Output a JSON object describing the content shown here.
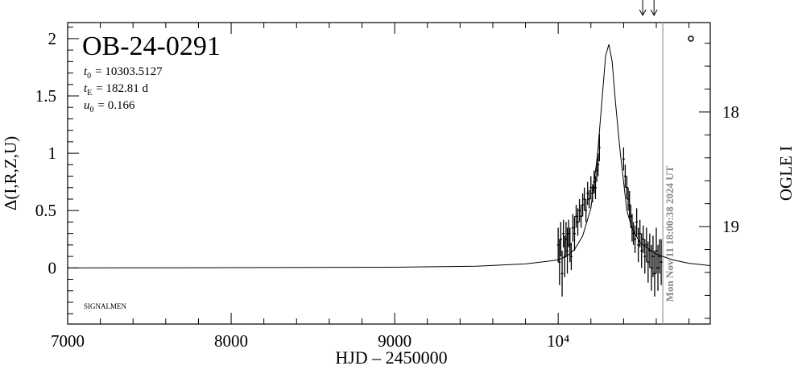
{
  "chart_data": {
    "type": "scatter",
    "title": "OB-24-0291",
    "parameters": [
      {
        "symbol": "t",
        "sub": "0",
        "text": "= 10303.5127"
      },
      {
        "symbol": "t",
        "sub": "E",
        "text": "= 182.81 d"
      },
      {
        "symbol": "u",
        "sub": "0",
        "text": "= 0.166"
      }
    ],
    "note": "SIGNALMEN",
    "timestamp": "Mon Nov 11 18:00:38 2024 UT",
    "x_label": "HJD – 2450000",
    "y_label": "Δ(I,R,Z,U)",
    "y2_label": "OGLE I",
    "xlim": [
      7000,
      10930
    ],
    "ylim": [
      -0.49,
      2.14
    ],
    "y2lim": [
      19.85,
      17.22
    ],
    "xticks": [
      7000,
      8000,
      9000,
      {
        "value": 10000,
        "label": "10⁴"
      }
    ],
    "xminorticks": [
      7200,
      7400,
      7600,
      7800,
      8200,
      8400,
      8600,
      8800,
      9200,
      9400,
      9600,
      9800,
      10200,
      10400,
      10600,
      10800
    ],
    "yticks": [
      0,
      0.5,
      1,
      1.5,
      2
    ],
    "yminorticks": [
      -0.4,
      -0.3,
      -0.2,
      -0.1,
      0.1,
      0.2,
      0.3,
      0.4,
      0.6,
      0.7,
      0.8,
      0.9,
      1.1,
      1.2,
      1.3,
      1.4,
      1.6,
      1.7,
      1.8,
      1.9,
      2.1
    ],
    "y2ticks": [
      18,
      19
    ],
    "y2minorticks": [
      17.4,
      17.6,
      17.8,
      18.2,
      18.4,
      18.6,
      18.8,
      19.2,
      19.4,
      19.6,
      19.8
    ],
    "now_line": 10640,
    "arrows": [
      10517,
      10586
    ],
    "series": [
      {
        "style": "line",
        "color": "#000000",
        "x": [
          7000,
          8000,
          9000,
          9500,
          9800,
          9950,
          10000,
          10050,
          10100,
          10150,
          10200,
          10240,
          10270,
          10290,
          10310,
          10330,
          10350,
          10380,
          10420,
          10450,
          10500,
          10600,
          10700,
          10800,
          10930
        ],
        "values": [
          0,
          0.002,
          0.006,
          0.015,
          0.035,
          0.06,
          0.07,
          0.1,
          0.16,
          0.28,
          0.52,
          0.98,
          1.5,
          1.85,
          1.95,
          1.8,
          1.45,
          1.0,
          0.5,
          0.35,
          0.22,
          0.12,
          0.07,
          0.04,
          0.02
        ]
      },
      {
        "style": "errorbar",
        "color": "#000000",
        "x": [
          10000,
          10008,
          10016,
          10024,
          10032,
          10040,
          10048,
          10056,
          10064,
          10072,
          10080,
          10090,
          10100,
          10110,
          10120,
          10130,
          10140,
          10150,
          10160,
          10170,
          10180,
          10190,
          10200,
          10210,
          10220,
          10228,
          10236,
          10244,
          10252,
          10400,
          10410,
          10420,
          10428,
          10436,
          10444,
          10452,
          10460,
          10470,
          10480,
          10490,
          10500,
          10510,
          10520,
          10530,
          10540,
          10550,
          10560,
          10570,
          10580,
          10590,
          10600,
          10610,
          10620,
          10630
        ],
        "values": [
          0.2,
          0.05,
          0.25,
          -0.05,
          0.3,
          0.1,
          0.25,
          0.15,
          0.3,
          0.2,
          0.1,
          0.35,
          0.3,
          0.45,
          0.4,
          0.5,
          0.45,
          0.55,
          0.6,
          0.5,
          0.65,
          0.6,
          0.7,
          0.65,
          0.75,
          0.7,
          0.85,
          0.9,
          1.05,
          0.95,
          0.8,
          0.7,
          0.6,
          0.55,
          0.45,
          0.35,
          0.3,
          0.25,
          0.4,
          0.2,
          0.3,
          0.15,
          0.25,
          0.1,
          0.2,
          0.05,
          0.15,
          0.0,
          0.1,
          -0.05,
          0.15,
          0.0,
          0.1,
          0.05
        ],
        "errors": [
          0.15,
          0.2,
          0.15,
          0.2,
          0.12,
          0.18,
          0.15,
          0.2,
          0.12,
          0.15,
          0.12,
          0.12,
          0.15,
          0.1,
          0.12,
          0.1,
          0.1,
          0.1,
          0.1,
          0.1,
          0.1,
          0.08,
          0.1,
          0.08,
          0.1,
          0.1,
          0.1,
          0.1,
          0.12,
          0.1,
          0.1,
          0.1,
          0.1,
          0.12,
          0.1,
          0.12,
          0.1,
          0.12,
          0.12,
          0.15,
          0.12,
          0.15,
          0.12,
          0.15,
          0.15,
          0.18,
          0.15,
          0.2,
          0.18,
          0.2,
          0.2,
          0.2,
          0.15,
          0.2
        ]
      }
    ]
  }
}
